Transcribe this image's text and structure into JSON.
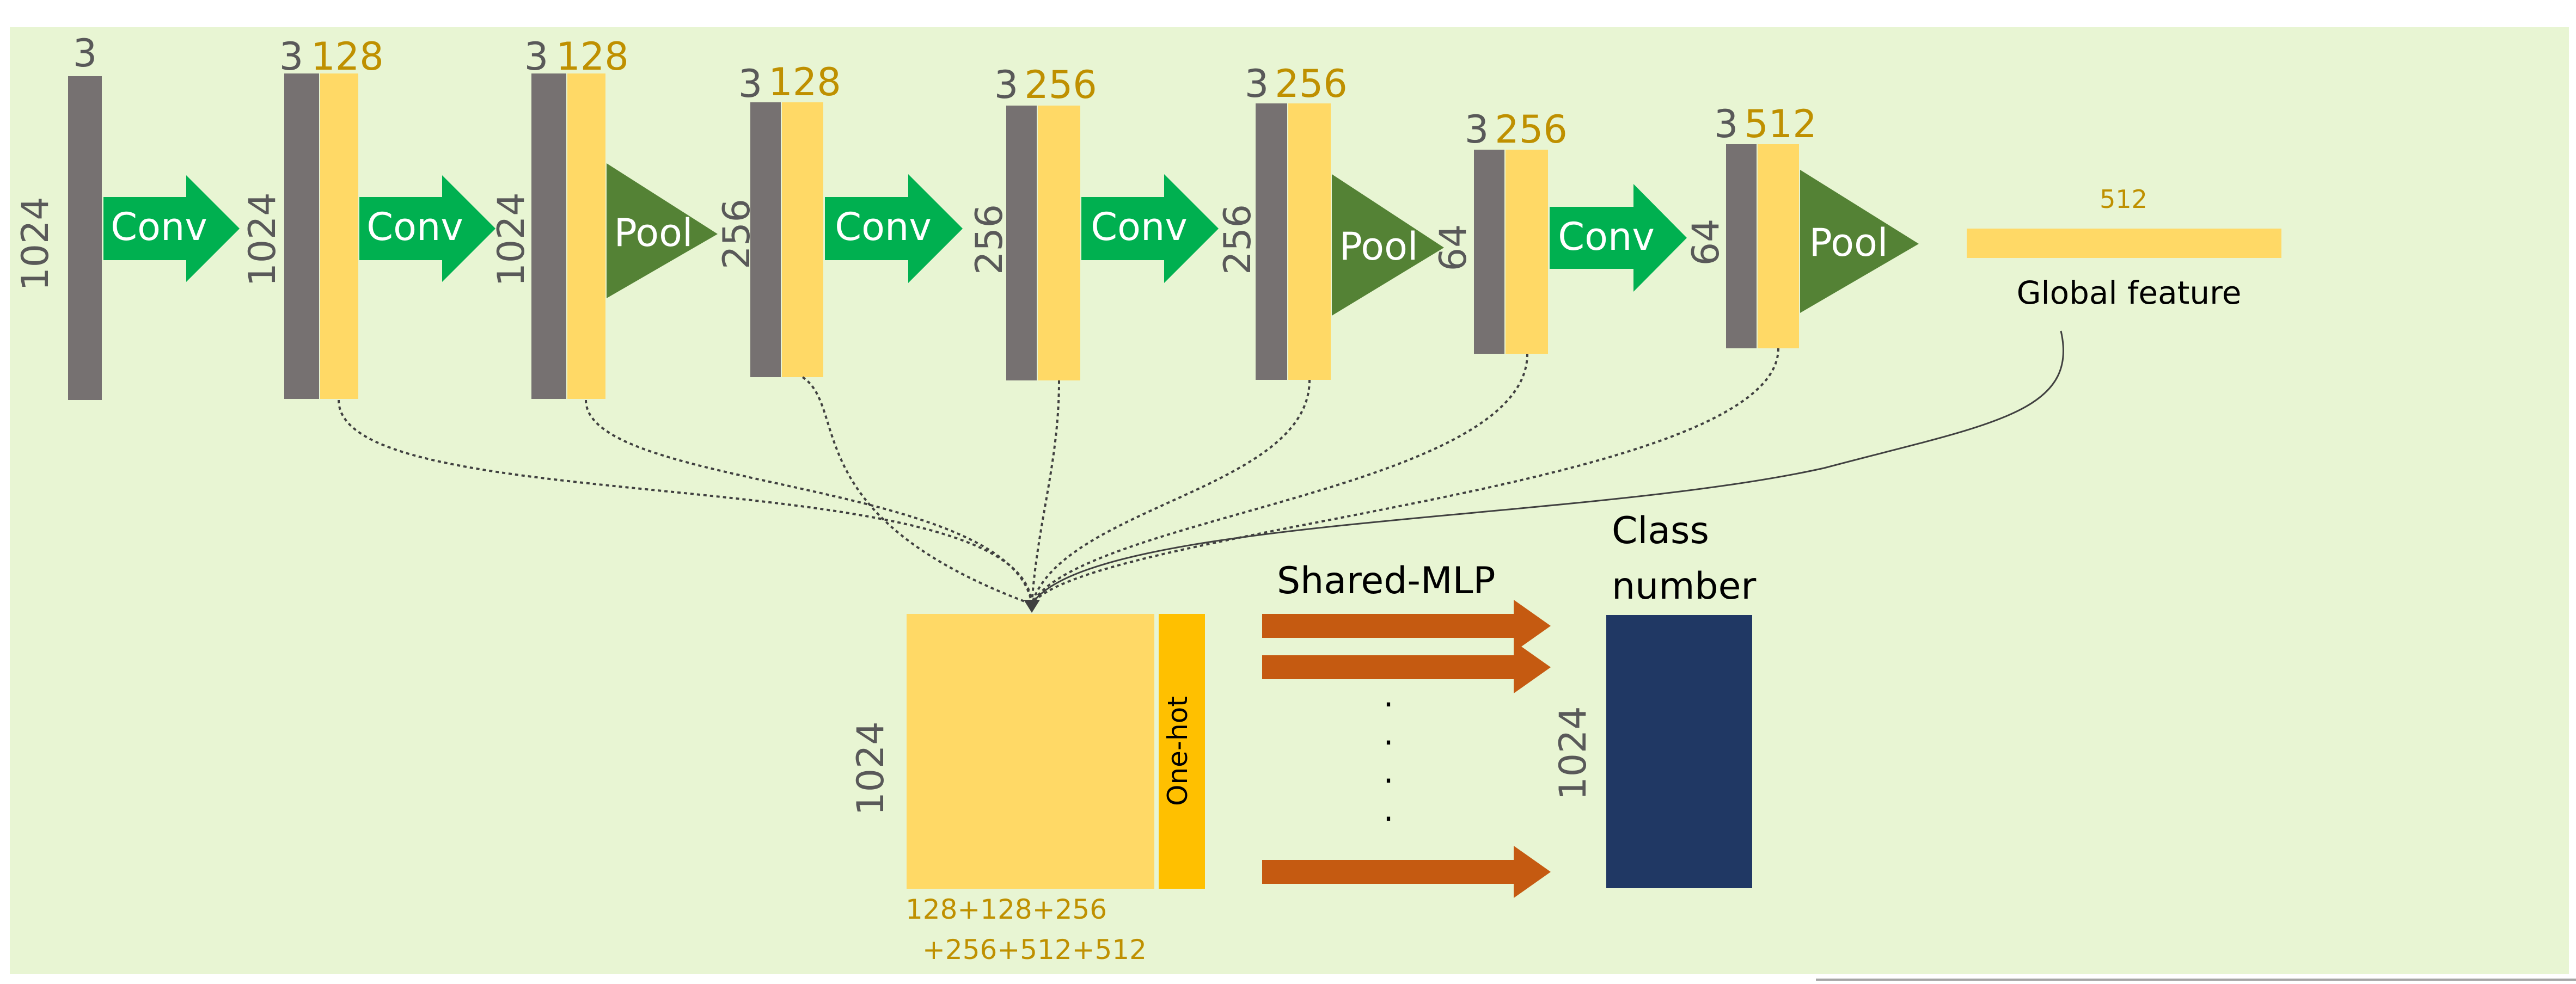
{
  "colors": {
    "background": "#E8F5D3",
    "gray_block": "#767171",
    "yellow_block": "#FFD966",
    "orange_block": "#FFC000",
    "conv_arrow": "#00B050",
    "pool_triangle": "#548235",
    "mlp_arrow": "#C55A11",
    "class_block": "#203864",
    "dim_gray": "#595959",
    "dim_gold": "#BF9000",
    "connector": "#404040"
  },
  "stages": [
    {
      "top_gray": "3",
      "top_yellow": "",
      "side": "1024"
    },
    {
      "top_gray": "3",
      "top_yellow": "128",
      "side": "1024"
    },
    {
      "top_gray": "3",
      "top_yellow": "128",
      "side": "1024"
    },
    {
      "top_gray": "3",
      "top_yellow": "128",
      "side": "256"
    },
    {
      "top_gray": "3",
      "top_yellow": "256",
      "side": "256"
    },
    {
      "top_gray": "3",
      "top_yellow": "256",
      "side": "256"
    },
    {
      "top_gray": "3",
      "top_yellow": "256",
      "side": "64"
    },
    {
      "top_gray": "3",
      "top_yellow": "512",
      "side": "64"
    }
  ],
  "ops": [
    "Conv",
    "Conv",
    "Pool",
    "Conv",
    "Conv",
    "Pool",
    "Conv",
    "Pool"
  ],
  "global_feature": {
    "dim": "512",
    "label": "Global feature"
  },
  "concat": {
    "side": "1024",
    "onehot": "One-hot",
    "bottom_line1": "128+128+256",
    "bottom_line2": "+256+512+512"
  },
  "mlp": {
    "label": "Shared-MLP",
    "dots": [
      "·",
      "·",
      "·",
      "·"
    ]
  },
  "output": {
    "label_line1": "Class",
    "label_line2": "number",
    "side": "1024"
  }
}
